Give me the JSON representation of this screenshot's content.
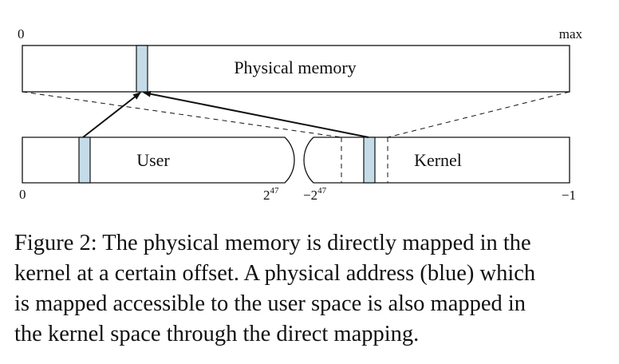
{
  "diagram": {
    "physical": {
      "label": "Physical memory",
      "start_label": "0",
      "end_label": "max"
    },
    "virtual": {
      "user_label": "User",
      "kernel_label": "Kernel",
      "start_label": "0",
      "user_end_base": "2",
      "user_end_exp": "47",
      "kernel_start_base": "−2",
      "kernel_start_exp": "47",
      "end_label": "−1"
    },
    "colors": {
      "highlight": "#c5dbe8",
      "stroke": "#111111"
    }
  },
  "caption": {
    "lines": [
      "Figure 2: The physical memory is directly mapped in the",
      "kernel at a certain offset. A physical address (blue) which",
      "is mapped accessible to the user space is also mapped in",
      "the kernel space through the direct mapping."
    ]
  }
}
